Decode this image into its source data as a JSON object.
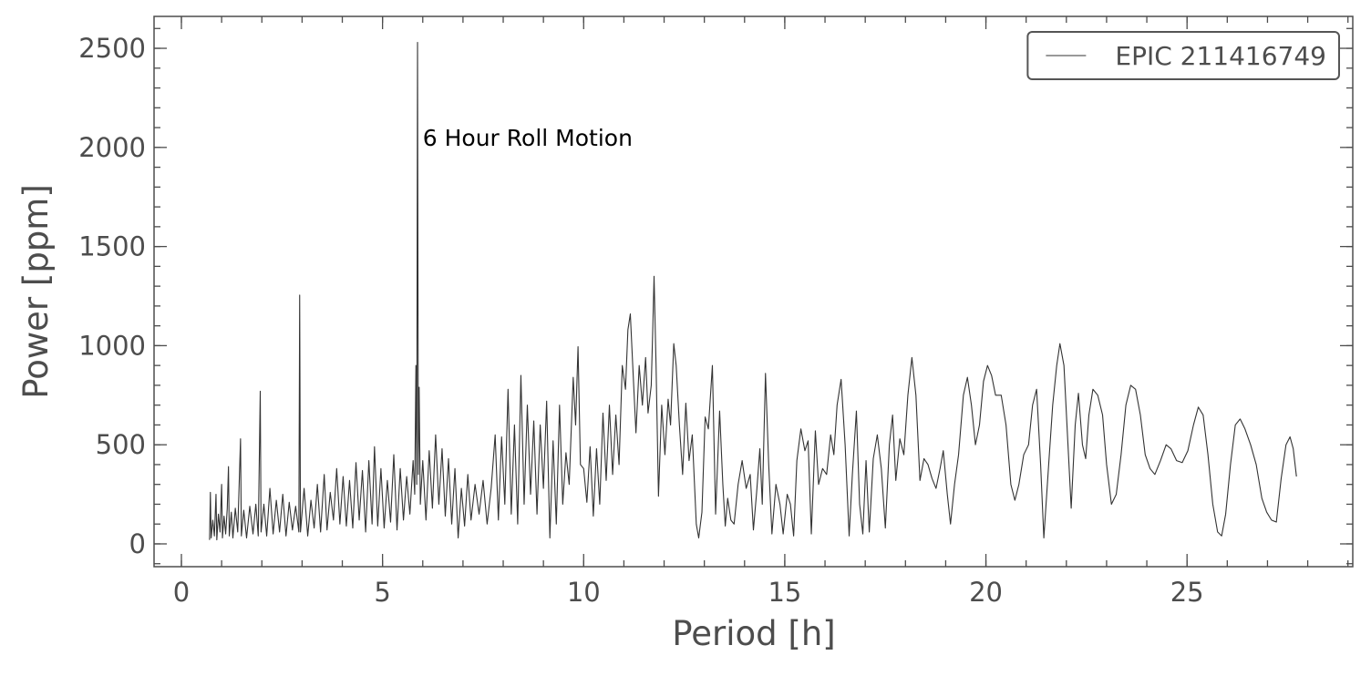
{
  "chart_data": {
    "type": "line",
    "xlabel": "Period [h]",
    "ylabel": "Power [ppm]",
    "xlim": [
      -0.68,
      29.12
    ],
    "ylim": [
      -115,
      2661
    ],
    "xticks": [
      0,
      5,
      10,
      15,
      20,
      25
    ],
    "yticks": [
      0,
      500,
      1000,
      1500,
      2000,
      2500
    ],
    "xminorticks": [
      0,
      1,
      2,
      3,
      4,
      5,
      6,
      7,
      8,
      9,
      10,
      11,
      12,
      13,
      14,
      15,
      16,
      17,
      18,
      19,
      20,
      21,
      22,
      23,
      24,
      25,
      26,
      27,
      28,
      29
    ],
    "yminorticks": [
      -100,
      0,
      100,
      200,
      300,
      400,
      500,
      600,
      700,
      800,
      900,
      1000,
      1100,
      1200,
      1300,
      1400,
      1500,
      1600,
      1700,
      1800,
      1900,
      2000,
      2100,
      2200,
      2300,
      2400,
      2500,
      2600
    ],
    "legend": "upper right",
    "annotations": [
      {
        "text": "6 Hour Roll Motion",
        "x": 6.0,
        "y": 2045
      }
    ],
    "x": [
      0.7,
      0.72,
      0.74,
      0.78,
      0.82,
      0.86,
      0.88,
      0.92,
      0.96,
      1.0,
      1.02,
      1.06,
      1.1,
      1.14,
      1.17,
      1.19,
      1.24,
      1.28,
      1.34,
      1.4,
      1.47,
      1.49,
      1.55,
      1.62,
      1.7,
      1.78,
      1.85,
      1.91,
      1.96,
      1.98,
      2.05,
      2.12,
      2.2,
      2.28,
      2.36,
      2.44,
      2.52,
      2.6,
      2.68,
      2.76,
      2.84,
      2.92,
      2.94,
      2.96,
      3.05,
      3.14,
      3.22,
      3.3,
      3.38,
      3.46,
      3.55,
      3.62,
      3.7,
      3.78,
      3.86,
      3.94,
      4.02,
      4.1,
      4.18,
      4.26,
      4.34,
      4.42,
      4.5,
      4.58,
      4.66,
      4.74,
      4.8,
      4.88,
      4.96,
      5.04,
      5.12,
      5.2,
      5.28,
      5.36,
      5.44,
      5.52,
      5.6,
      5.68,
      5.76,
      5.8,
      5.83,
      5.85,
      5.87,
      5.89,
      5.91,
      5.94,
      6.0,
      6.08,
      6.16,
      6.24,
      6.32,
      6.4,
      6.48,
      6.56,
      6.64,
      6.72,
      6.8,
      6.88,
      6.96,
      7.04,
      7.12,
      7.2,
      7.3,
      7.4,
      7.5,
      7.6,
      7.7,
      7.8,
      7.88,
      7.96,
      8.04,
      8.12,
      8.2,
      8.28,
      8.36,
      8.44,
      8.52,
      8.6,
      8.68,
      8.76,
      8.84,
      8.92,
      9.0,
      9.08,
      9.16,
      9.24,
      9.32,
      9.4,
      9.48,
      9.56,
      9.64,
      9.74,
      9.8,
      9.86,
      9.92,
      10.0,
      10.08,
      10.16,
      10.24,
      10.32,
      10.4,
      10.48,
      10.56,
      10.64,
      10.72,
      10.8,
      10.88,
      10.96,
      11.04,
      11.1,
      11.16,
      11.22,
      11.3,
      11.38,
      11.46,
      11.54,
      11.6,
      11.68,
      11.72,
      11.75,
      11.8,
      11.86,
      11.94,
      12.02,
      12.1,
      12.16,
      12.24,
      12.3,
      12.38,
      12.46,
      12.54,
      12.62,
      12.7,
      12.8,
      12.86,
      12.94,
      13.02,
      13.1,
      13.2,
      13.28,
      13.38,
      13.46,
      13.52,
      13.58,
      13.66,
      13.74,
      13.84,
      13.94,
      14.04,
      14.14,
      14.22,
      14.3,
      14.38,
      14.44,
      14.52,
      14.6,
      14.68,
      14.78,
      14.88,
      14.96,
      15.06,
      15.14,
      15.22,
      15.3,
      15.4,
      15.5,
      15.58,
      15.66,
      15.76,
      15.84,
      15.94,
      16.04,
      16.14,
      16.22,
      16.3,
      16.4,
      16.5,
      16.6,
      16.68,
      16.78,
      16.86,
      16.94,
      17.02,
      17.1,
      17.2,
      17.3,
      17.4,
      17.5,
      17.6,
      17.68,
      17.76,
      17.86,
      17.96,
      18.06,
      18.16,
      18.26,
      18.36,
      18.46,
      18.56,
      18.66,
      18.76,
      18.86,
      18.94,
      19.04,
      19.12,
      19.22,
      19.32,
      19.44,
      19.54,
      19.64,
      19.74,
      19.84,
      19.94,
      20.04,
      20.14,
      20.24,
      20.38,
      20.5,
      20.62,
      20.72,
      20.82,
      20.94,
      21.06,
      21.16,
      21.26,
      21.36,
      21.44,
      21.56,
      21.66,
      21.76,
      21.84,
      21.94,
      22.04,
      22.12,
      22.22,
      22.3,
      22.4,
      22.48,
      22.56,
      22.66,
      22.78,
      22.9,
      23.0,
      23.12,
      23.24,
      23.36,
      23.48,
      23.6,
      23.72,
      23.84,
      23.96,
      24.08,
      24.2,
      24.34,
      24.48,
      24.6,
      24.74,
      24.88,
      25.02,
      25.16,
      25.28,
      25.4,
      25.52,
      25.64,
      25.76,
      25.86,
      25.96,
      26.08,
      26.2,
      26.32,
      26.44,
      26.58,
      26.72,
      26.86,
      26.98,
      27.1,
      27.22,
      27.34,
      27.46,
      27.56,
      27.64,
      27.72
    ],
    "series": [
      {
        "name": "EPIC 211416749",
        "color": "#333333",
        "values": [
          20,
          260,
          30,
          120,
          40,
          250,
          20,
          150,
          60,
          300,
          30,
          140,
          50,
          180,
          390,
          40,
          160,
          30,
          180,
          60,
          530,
          40,
          170,
          30,
          190,
          50,
          200,
          40,
          770,
          60,
          200,
          40,
          280,
          50,
          220,
          60,
          250,
          40,
          210,
          70,
          190,
          60,
          1255,
          60,
          280,
          40,
          220,
          80,
          300,
          60,
          350,
          70,
          260,
          120,
          380,
          100,
          340,
          90,
          320,
          80,
          410,
          120,
          370,
          60,
          420,
          100,
          490,
          90,
          380,
          80,
          320,
          110,
          450,
          70,
          380,
          120,
          340,
          150,
          420,
          250,
          900,
          300,
          2530,
          350,
          790,
          200,
          420,
          120,
          470,
          180,
          550,
          200,
          480,
          140,
          430,
          100,
          380,
          30,
          280,
          90,
          350,
          120,
          300,
          150,
          320,
          100,
          280,
          550,
          120,
          540,
          200,
          780,
          150,
          600,
          100,
          850,
          200,
          700,
          250,
          620,
          150,
          600,
          280,
          720,
          30,
          520,
          100,
          700,
          200,
          460,
          300,
          840,
          600,
          995,
          400,
          380,
          210,
          490,
          140,
          480,
          200,
          660,
          320,
          700,
          350,
          650,
          400,
          900,
          780,
          1080,
          1160,
          900,
          560,
          900,
          700,
          940,
          660,
          800,
          1100,
          1350,
          900,
          240,
          700,
          450,
          730,
          600,
          1010,
          900,
          600,
          350,
          710,
          420,
          550,
          100,
          30,
          160,
          640,
          580,
          900,
          150,
          670,
          300,
          90,
          230,
          120,
          100,
          300,
          420,
          280,
          350,
          70,
          260,
          480,
          200,
          860,
          400,
          50,
          300,
          200,
          50,
          250,
          200,
          40,
          420,
          580,
          470,
          520,
          50,
          570,
          300,
          380,
          350,
          550,
          450,
          700,
          830,
          500,
          40,
          350,
          670,
          200,
          50,
          420,
          60,
          430,
          550,
          380,
          80,
          500,
          650,
          320,
          530,
          450,
          750,
          940,
          750,
          320,
          430,
          400,
          330,
          280,
          380,
          470,
          250,
          100,
          300,
          450,
          750,
          840,
          700,
          500,
          600,
          820,
          900,
          850,
          750,
          750,
          600,
          300,
          220,
          300,
          450,
          500,
          700,
          780,
          400,
          30,
          400,
          700,
          900,
          1010,
          900,
          500,
          180,
          600,
          760,
          500,
          430,
          650,
          780,
          750,
          650,
          400,
          200,
          250,
          450,
          700,
          800,
          780,
          650,
          450,
          380,
          350,
          420,
          500,
          480,
          420,
          410,
          470,
          600,
          690,
          650,
          450,
          200,
          60,
          40,
          150,
          400,
          600,
          630,
          580,
          500,
          400,
          230,
          160,
          120,
          110,
          330,
          500,
          540,
          480,
          340
        ]
      }
    ]
  }
}
